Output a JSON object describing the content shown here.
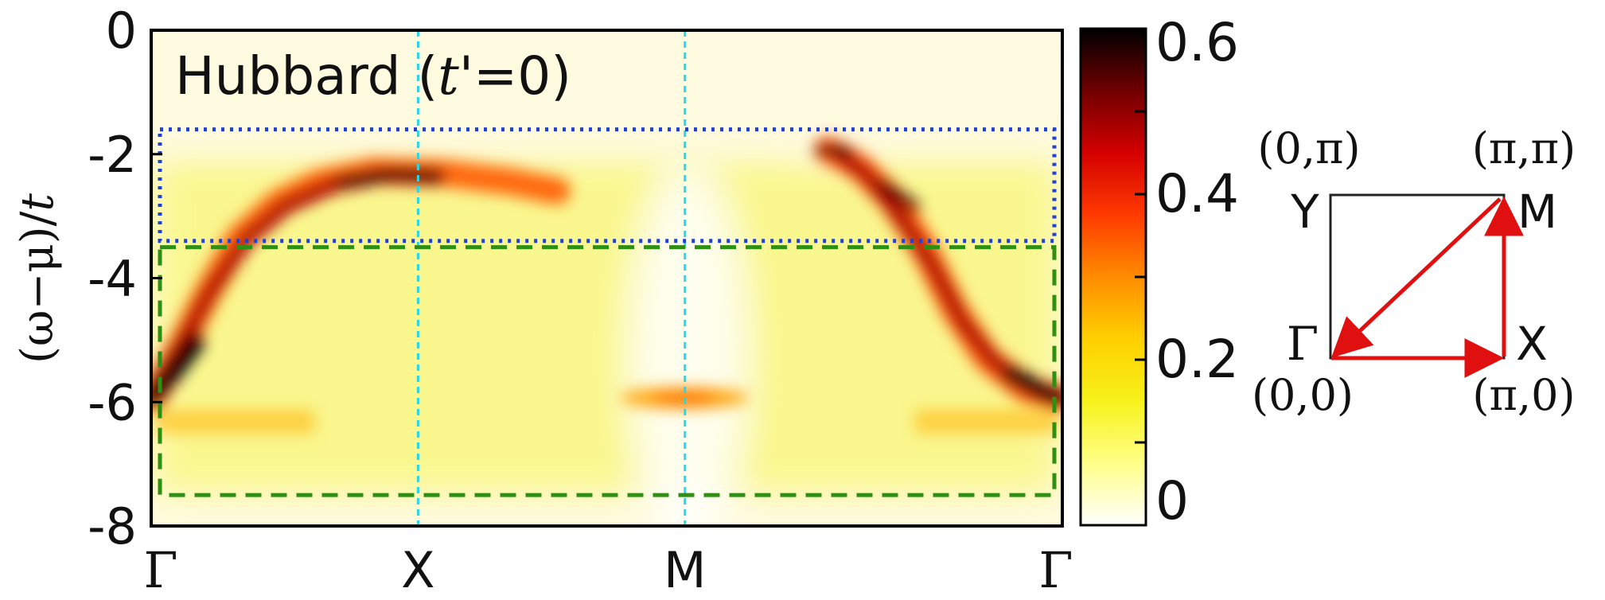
{
  "chart_data": {
    "type": "heatmap",
    "panel_label": "Hubbard (t'=0)",
    "panel_label_parts": {
      "prefix": "Hubbard (",
      "var": "t",
      "prime": "'",
      "suffix": "=0)"
    },
    "ylabel": "(ω−μ)/t",
    "ylabel_parts": {
      "main": "(ω−μ)/",
      "var": "t"
    },
    "ylim": [
      -8,
      0
    ],
    "yticks": [
      "0",
      "-2",
      "-4",
      "-6",
      "-8"
    ],
    "ytick_values": [
      0,
      -2,
      -4,
      -6,
      -8
    ],
    "x_path": [
      "Γ",
      "X",
      "M",
      "Γ"
    ],
    "x_path_positions": [
      0,
      1,
      2,
      3.414
    ],
    "vertical_guides_at": [
      "X",
      "M"
    ],
    "colorbar": {
      "range": [
        0,
        0.6
      ],
      "ticks": [
        "0.6",
        "0.4",
        "0.2",
        "0"
      ],
      "tick_values": [
        0.6,
        0.4,
        0.2,
        0
      ],
      "colormap": [
        "#ffffff",
        "#ffff88",
        "#f6f21a",
        "#ffd000",
        "#ff8c00",
        "#ff3a00",
        "#d40000",
        "#700000",
        "#000000"
      ]
    },
    "regions": [
      {
        "style": "dotted",
        "color": "#1f3fd6",
        "energy_range": [
          -3.4,
          -1.6
        ]
      },
      {
        "style": "dashed",
        "color": "#2e8f12",
        "energy_range": [
          -7.5,
          -3.5
        ]
      }
    ],
    "bands": [
      {
        "description": "dispersing band Γ→X",
        "points": [
          [
            0,
            -6.1
          ],
          [
            0.25,
            -5.0
          ],
          [
            0.5,
            -3.6
          ],
          [
            0.75,
            -2.8
          ],
          [
            1.0,
            -2.35
          ],
          [
            1.3,
            -2.4
          ],
          [
            1.5,
            -2.6
          ]
        ]
      },
      {
        "description": "band near M",
        "points": [
          [
            1.85,
            -6.2
          ],
          [
            2.0,
            -6.0
          ],
          [
            2.15,
            -6.2
          ]
        ]
      },
      {
        "description": "dispersing band M→Γ",
        "points": [
          [
            2.6,
            -2.0
          ],
          [
            2.75,
            -2.3
          ],
          [
            2.95,
            -3.0
          ],
          [
            3.1,
            -4.0
          ],
          [
            3.25,
            -5.3
          ],
          [
            3.414,
            -6.0
          ]
        ]
      }
    ]
  },
  "brillouin_zone": {
    "corner_labels": {
      "top_left": "(0,π)",
      "top_right": "(π,π)",
      "bottom_left": "(0,0)",
      "bottom_right": "(π,0)"
    },
    "point_labels": {
      "Y": "Y",
      "M": "M",
      "Gamma": "Γ",
      "X": "X"
    },
    "path": [
      "Γ",
      "X",
      "M",
      "Γ"
    ],
    "path_color": "#e01010"
  }
}
